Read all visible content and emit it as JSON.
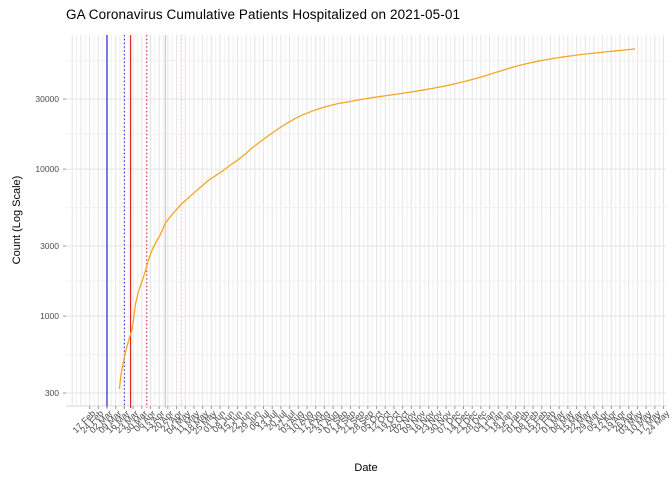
{
  "title": "GA Coronavirus Cumulative Patients Hospitalized on 2021-05-01",
  "chart_data": {
    "type": "line",
    "title": "GA Coronavirus Cumulative Patients Hospitalized on 2021-05-01",
    "xlabel": "Date",
    "ylabel": "Count (Log Scale)",
    "y_scale": "log10",
    "grid": true,
    "legend": false,
    "line_color": "#F5A623",
    "y_ticks": [
      300,
      1000,
      3000,
      10000,
      30000
    ],
    "y_tick_labels": [
      "300",
      "1000",
      "3000",
      "10000",
      "30000"
    ],
    "y_minor_ticks": [
      547.7,
      1732.1,
      5477.2,
      17320.5,
      54772.3
    ],
    "x_range": [
      "2020-01-29",
      "2021-05-26"
    ],
    "x_tick_interval_days": 7,
    "x_grid_start": "2020-02-03",
    "x_label_start": "2020-02-17",
    "x_tick_labels": [
      "17 Feb",
      "24 Feb",
      "02 Mar",
      "09 Mar",
      "16 Mar",
      "23 Mar",
      "30 Mar",
      "06 Apr",
      "13 Apr",
      "20 Apr",
      "27 Apr",
      "04 May",
      "11 May",
      "18 May",
      "25 May",
      "01 Jun",
      "08 Jun",
      "15 Jun",
      "22 Jun",
      "29 Jun",
      "06 Jul",
      "13 Jul",
      "20 Jul",
      "27 Jul",
      "03 Aug",
      "10 Aug",
      "17 Aug",
      "24 Aug",
      "31 Aug",
      "07 Sep",
      "14 Sep",
      "21 Sep",
      "28 Sep",
      "05 Oct",
      "12 Oct",
      "19 Oct",
      "26 Oct",
      "02 Nov",
      "09 Nov",
      "16 Nov",
      "23 Nov",
      "30 Nov",
      "07 Dec",
      "14 Dec",
      "21 Dec",
      "28 Dec",
      "04 Jan",
      "11 Jan",
      "18 Jan",
      "25 Jan",
      "01 Feb",
      "08 Feb",
      "15 Feb",
      "22 Feb",
      "01 Mar",
      "08 Mar",
      "15 Mar",
      "22 Mar",
      "29 Mar",
      "05 Apr",
      "12 Apr",
      "19 Apr",
      "26 Apr",
      "03 May",
      "10 May",
      "17 May",
      "24 May"
    ],
    "event_lines": [
      {
        "date": "2020-03-02",
        "color": "#2525C9",
        "style": "solid"
      },
      {
        "date": "2020-03-16",
        "color": "#3A3AE0",
        "style": "dotted"
      },
      {
        "date": "2020-03-21",
        "color": "#E02424",
        "style": "solid"
      },
      {
        "date": "2020-04-03",
        "color": "#DD3333",
        "style": "dotted"
      },
      {
        "date": "2020-04-18",
        "color": "#F7B6C2",
        "style": "solid"
      },
      {
        "date": "2020-05-01",
        "color": "#F9C6D0",
        "style": "dotted"
      }
    ],
    "series": [
      {
        "name": "Cumulative Patients Hospitalized",
        "color": "#F5A623",
        "points": [
          [
            "2020-03-12",
            320
          ],
          [
            "2020-03-13",
            385
          ],
          [
            "2020-03-14",
            430
          ],
          [
            "2020-03-16",
            530
          ],
          [
            "2020-03-18",
            620
          ],
          [
            "2020-03-20",
            710
          ],
          [
            "2020-03-22",
            800
          ],
          [
            "2020-03-23",
            900
          ],
          [
            "2020-03-24",
            1050
          ],
          [
            "2020-03-25",
            1220
          ],
          [
            "2020-03-27",
            1430
          ],
          [
            "2020-03-29",
            1620
          ],
          [
            "2020-03-31",
            1800
          ],
          [
            "2020-04-02",
            2050
          ],
          [
            "2020-04-04",
            2350
          ],
          [
            "2020-04-06",
            2650
          ],
          [
            "2020-04-08",
            2900
          ],
          [
            "2020-04-11",
            3250
          ],
          [
            "2020-04-14",
            3600
          ],
          [
            "2020-04-18",
            4300
          ],
          [
            "2020-04-22",
            4750
          ],
          [
            "2020-04-26",
            5200
          ],
          [
            "2020-05-01",
            5800
          ],
          [
            "2020-05-06",
            6300
          ],
          [
            "2020-05-11",
            6900
          ],
          [
            "2020-05-16",
            7500
          ],
          [
            "2020-05-22",
            8300
          ],
          [
            "2020-05-28",
            9000
          ],
          [
            "2020-06-03",
            9700
          ],
          [
            "2020-06-09",
            10600
          ],
          [
            "2020-06-15",
            11500
          ],
          [
            "2020-06-21",
            12600
          ],
          [
            "2020-06-27",
            14000
          ],
          [
            "2020-07-03",
            15300
          ],
          [
            "2020-07-10",
            16900
          ],
          [
            "2020-07-17",
            18600
          ],
          [
            "2020-07-24",
            20300
          ],
          [
            "2020-07-31",
            22000
          ],
          [
            "2020-08-07",
            23500
          ],
          [
            "2020-08-14",
            24800
          ],
          [
            "2020-08-21",
            26000
          ],
          [
            "2020-08-28",
            27000
          ],
          [
            "2020-09-04",
            27900
          ],
          [
            "2020-09-11",
            28600
          ],
          [
            "2020-09-18",
            29300
          ],
          [
            "2020-09-25",
            30000
          ],
          [
            "2020-10-02",
            30700
          ],
          [
            "2020-10-09",
            31300
          ],
          [
            "2020-10-16",
            31900
          ],
          [
            "2020-10-23",
            32500
          ],
          [
            "2020-10-30",
            33200
          ],
          [
            "2020-11-06",
            33900
          ],
          [
            "2020-11-13",
            34700
          ],
          [
            "2020-11-20",
            35600
          ],
          [
            "2020-11-27",
            36500
          ],
          [
            "2020-12-04",
            37600
          ],
          [
            "2020-12-11",
            38800
          ],
          [
            "2020-12-18",
            40100
          ],
          [
            "2020-12-25",
            41600
          ],
          [
            "2021-01-01",
            43300
          ],
          [
            "2021-01-08",
            45200
          ],
          [
            "2021-01-15",
            47200
          ],
          [
            "2021-01-22",
            49200
          ],
          [
            "2021-01-29",
            51000
          ],
          [
            "2021-02-05",
            52700
          ],
          [
            "2021-02-12",
            54200
          ],
          [
            "2021-02-19",
            55600
          ],
          [
            "2021-02-26",
            56900
          ],
          [
            "2021-03-05",
            58100
          ],
          [
            "2021-03-12",
            59200
          ],
          [
            "2021-03-19",
            60200
          ],
          [
            "2021-03-26",
            61200
          ],
          [
            "2021-04-02",
            62100
          ],
          [
            "2021-04-09",
            63000
          ],
          [
            "2021-04-16",
            63800
          ],
          [
            "2021-04-23",
            64600
          ],
          [
            "2021-04-28",
            65300
          ],
          [
            "2021-04-30",
            65500
          ],
          [
            "2021-05-01",
            66300
          ]
        ]
      }
    ]
  }
}
